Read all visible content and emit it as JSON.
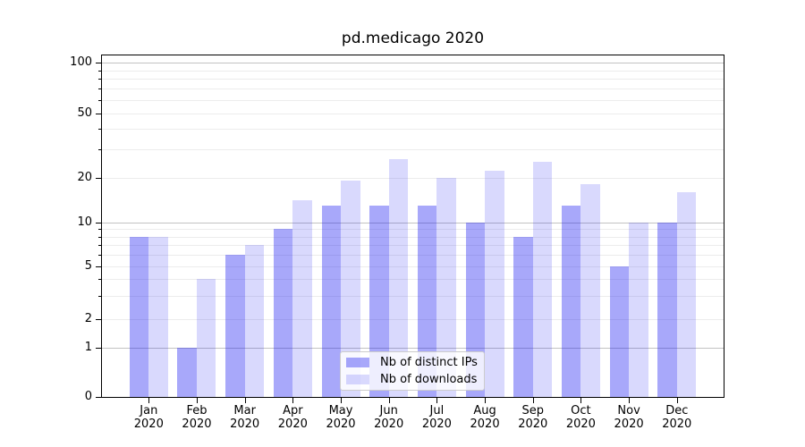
{
  "chart_data": {
    "type": "bar",
    "title": "pd.medicago 2020",
    "year_label": "2020",
    "categories": [
      "Jan",
      "Feb",
      "Mar",
      "Apr",
      "May",
      "Jun",
      "Jul",
      "Aug",
      "Sep",
      "Oct",
      "Nov",
      "Dec"
    ],
    "series": [
      {
        "name": "Nb of distinct IPs",
        "color": "rgba(13,13,242,0.36)",
        "values": [
          8,
          1,
          6,
          9,
          13,
          13,
          13,
          10,
          8,
          13,
          5,
          10
        ]
      },
      {
        "name": "Nb of downloads",
        "color": "rgba(13,13,242,0.155)",
        "values": [
          8,
          4,
          7,
          14,
          19,
          26,
          20,
          22,
          25,
          18,
          10,
          16
        ]
      }
    ],
    "yscale": "symlog",
    "ylim": [
      0,
      120
    ],
    "yticks": [
      "0",
      "1",
      "2",
      "5",
      "10",
      "20",
      "50",
      "100"
    ],
    "ytick_values": [
      0,
      1,
      2,
      5,
      10,
      20,
      50,
      100
    ],
    "minor_tick_values": [
      3,
      4,
      6,
      7,
      8,
      9,
      30,
      40,
      60,
      70,
      80,
      90
    ],
    "major_grid_values": [
      1,
      10,
      100
    ],
    "grid": true,
    "legend_position": "lower center",
    "colors": {
      "bar_distinct_ips": "#a8a8fb",
      "bar_downloads": "#dadafd",
      "grid_major": "#c2c2c2",
      "grid_minor": "#ececec",
      "axis": "#000000",
      "background": "#ffffff"
    }
  }
}
